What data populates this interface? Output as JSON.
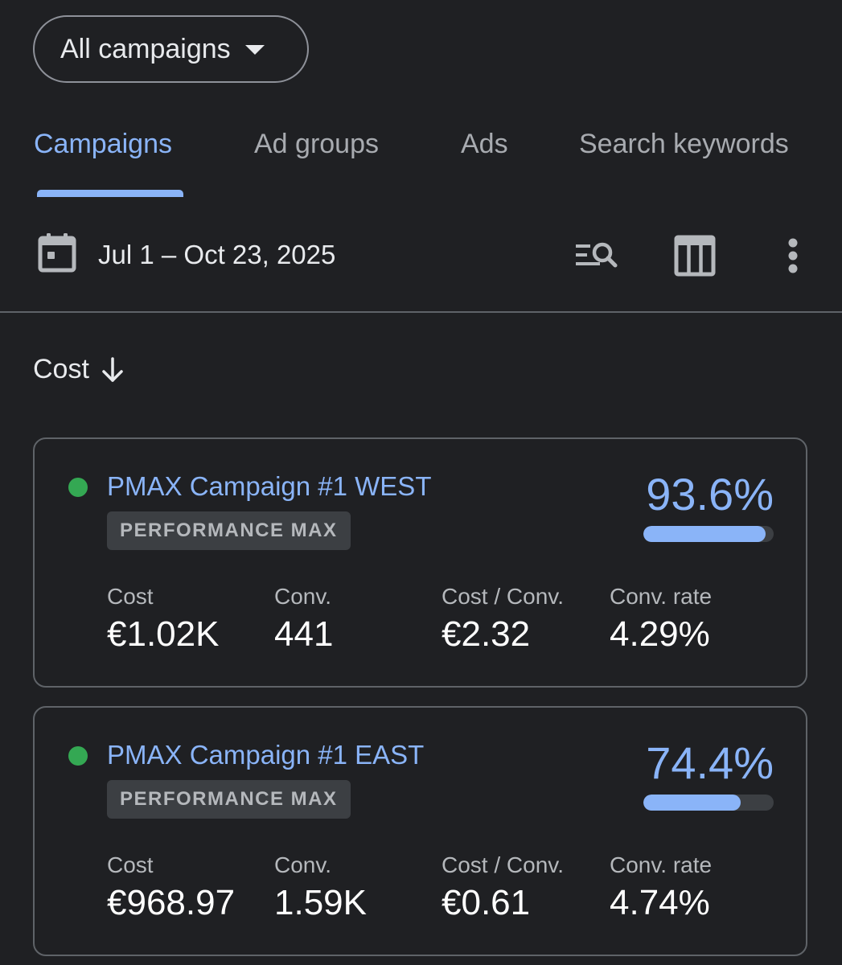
{
  "filter": {
    "label": "All campaigns"
  },
  "tabs": [
    {
      "label": "Campaigns",
      "active": true
    },
    {
      "label": "Ad groups",
      "active": false
    },
    {
      "label": "Ads",
      "active": false
    },
    {
      "label": "Search keywords",
      "active": false
    }
  ],
  "toolbar": {
    "date_range": "Jul 1 – Oct 23, 2025",
    "icons": [
      "calendar-icon",
      "filter-search-icon",
      "columns-icon",
      "more-vert-icon"
    ]
  },
  "sort": {
    "label": "Cost",
    "direction_icon": "arrow-down-icon"
  },
  "colors": {
    "accent": "#8ab4f8",
    "status_enabled": "#34a853",
    "background": "#1f2023"
  },
  "campaigns": [
    {
      "name": "PMAX Campaign #1 WEST",
      "type": "PERFORMANCE MAX",
      "status": "enabled",
      "optimization_score": "93.6%",
      "optimization_fraction": 0.936,
      "metrics": [
        {
          "label": "Cost",
          "value": "€1.02K"
        },
        {
          "label": "Conv.",
          "value": "441"
        },
        {
          "label": "Cost / Conv.",
          "value": "€2.32"
        },
        {
          "label": "Conv. rate",
          "value": "4.29%"
        }
      ]
    },
    {
      "name": "PMAX Campaign #1 EAST",
      "type": "PERFORMANCE MAX",
      "status": "enabled",
      "optimization_score": "74.4%",
      "optimization_fraction": 0.744,
      "metrics": [
        {
          "label": "Cost",
          "value": "€968.97"
        },
        {
          "label": "Conv.",
          "value": "1.59K"
        },
        {
          "label": "Cost / Conv.",
          "value": "€0.61"
        },
        {
          "label": "Conv. rate",
          "value": "4.74%"
        }
      ]
    }
  ]
}
